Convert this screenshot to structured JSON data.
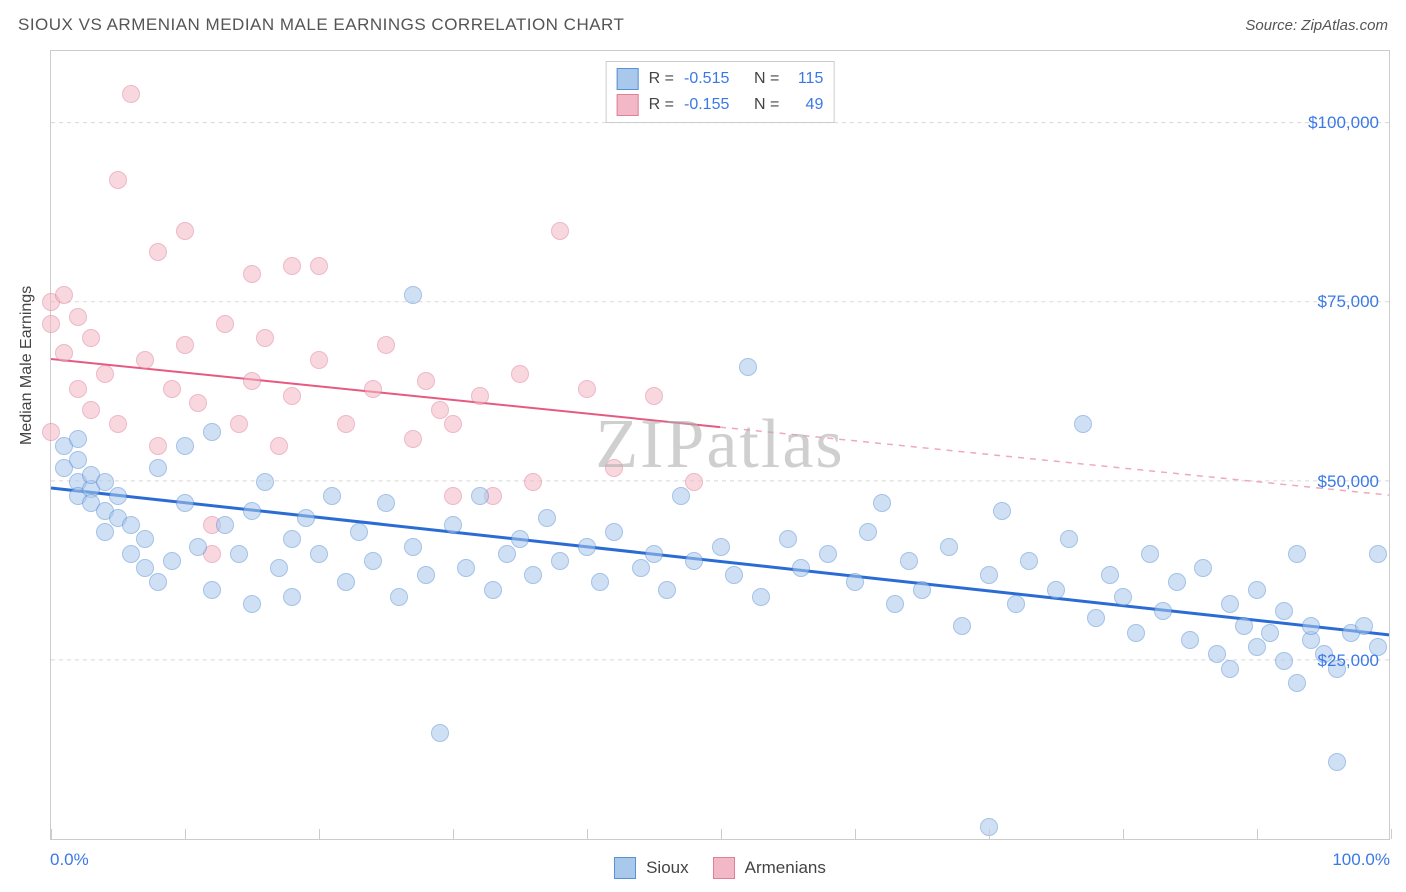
{
  "header": {
    "title": "SIOUX VS ARMENIAN MEDIAN MALE EARNINGS CORRELATION CHART",
    "source_prefix": "Source: ",
    "source": "ZipAtlas.com"
  },
  "chart": {
    "type": "scatter",
    "ylabel": "Median Male Earnings",
    "xlim": [
      0,
      100
    ],
    "ylim": [
      0,
      110000
    ],
    "y_gridlines": [
      25000,
      50000,
      75000,
      100000
    ],
    "y_tick_labels": [
      "$25,000",
      "$50,000",
      "$75,000",
      "$100,000"
    ],
    "x_ticks": [
      0,
      10,
      20,
      30,
      40,
      50,
      60,
      70,
      80,
      90,
      100
    ],
    "x_axis_left_label": "0.0%",
    "x_axis_right_label": "100.0%",
    "grid_color": "#d8d8d8",
    "border_color": "#cccccc",
    "tick_label_color": "#3b78e7",
    "background_color": "#ffffff",
    "point_radius": 9,
    "point_opacity": 0.55,
    "watermark": "ZIPatlas",
    "series": {
      "sioux": {
        "label": "Sioux",
        "fill": "#a8c8ec",
        "stroke": "#5b8fd6",
        "trend": {
          "x1": 0,
          "y1": 49000,
          "x2": 100,
          "y2": 28500,
          "width": 3,
          "color": "#2b6cd4",
          "dash": "none"
        },
        "points": [
          [
            1,
            55000
          ],
          [
            1,
            52000
          ],
          [
            2,
            50000
          ],
          [
            2,
            48000
          ],
          [
            2,
            53000
          ],
          [
            2,
            56000
          ],
          [
            3,
            49000
          ],
          [
            3,
            47000
          ],
          [
            3,
            51000
          ],
          [
            4,
            46000
          ],
          [
            4,
            50000
          ],
          [
            4,
            43000
          ],
          [
            5,
            48000
          ],
          [
            5,
            45000
          ],
          [
            6,
            44000
          ],
          [
            6,
            40000
          ],
          [
            7,
            42000
          ],
          [
            7,
            38000
          ],
          [
            8,
            52000
          ],
          [
            8,
            36000
          ],
          [
            9,
            39000
          ],
          [
            10,
            55000
          ],
          [
            10,
            47000
          ],
          [
            11,
            41000
          ],
          [
            12,
            57000
          ],
          [
            12,
            35000
          ],
          [
            13,
            44000
          ],
          [
            14,
            40000
          ],
          [
            15,
            46000
          ],
          [
            15,
            33000
          ],
          [
            16,
            50000
          ],
          [
            17,
            38000
          ],
          [
            18,
            42000
          ],
          [
            18,
            34000
          ],
          [
            19,
            45000
          ],
          [
            20,
            40000
          ],
          [
            21,
            48000
          ],
          [
            22,
            36000
          ],
          [
            23,
            43000
          ],
          [
            24,
            39000
          ],
          [
            25,
            47000
          ],
          [
            26,
            34000
          ],
          [
            27,
            76000
          ],
          [
            27,
            41000
          ],
          [
            28,
            37000
          ],
          [
            29,
            15000
          ],
          [
            30,
            44000
          ],
          [
            31,
            38000
          ],
          [
            32,
            48000
          ],
          [
            33,
            35000
          ],
          [
            34,
            40000
          ],
          [
            35,
            42000
          ],
          [
            36,
            37000
          ],
          [
            37,
            45000
          ],
          [
            38,
            39000
          ],
          [
            40,
            41000
          ],
          [
            41,
            36000
          ],
          [
            42,
            43000
          ],
          [
            44,
            38000
          ],
          [
            45,
            40000
          ],
          [
            46,
            35000
          ],
          [
            47,
            48000
          ],
          [
            48,
            39000
          ],
          [
            50,
            41000
          ],
          [
            51,
            37000
          ],
          [
            52,
            66000
          ],
          [
            53,
            34000
          ],
          [
            55,
            42000
          ],
          [
            56,
            38000
          ],
          [
            58,
            40000
          ],
          [
            60,
            36000
          ],
          [
            61,
            43000
          ],
          [
            62,
            47000
          ],
          [
            63,
            33000
          ],
          [
            64,
            39000
          ],
          [
            65,
            35000
          ],
          [
            67,
            41000
          ],
          [
            68,
            30000
          ],
          [
            70,
            37000
          ],
          [
            70,
            2000
          ],
          [
            71,
            46000
          ],
          [
            72,
            33000
          ],
          [
            73,
            39000
          ],
          [
            75,
            35000
          ],
          [
            76,
            42000
          ],
          [
            77,
            58000
          ],
          [
            78,
            31000
          ],
          [
            79,
            37000
          ],
          [
            80,
            34000
          ],
          [
            81,
            29000
          ],
          [
            82,
            40000
          ],
          [
            83,
            32000
          ],
          [
            84,
            36000
          ],
          [
            85,
            28000
          ],
          [
            86,
            38000
          ],
          [
            87,
            26000
          ],
          [
            88,
            33000
          ],
          [
            88,
            24000
          ],
          [
            89,
            30000
          ],
          [
            90,
            27000
          ],
          [
            90,
            35000
          ],
          [
            91,
            29000
          ],
          [
            92,
            25000
          ],
          [
            92,
            32000
          ],
          [
            93,
            40000
          ],
          [
            93,
            22000
          ],
          [
            94,
            28000
          ],
          [
            94,
            30000
          ],
          [
            95,
            26000
          ],
          [
            96,
            24000
          ],
          [
            96,
            11000
          ],
          [
            97,
            29000
          ],
          [
            98,
            30000
          ],
          [
            99,
            40000
          ],
          [
            99,
            27000
          ]
        ]
      },
      "armenians": {
        "label": "Armenians",
        "fill": "#f3b8c5",
        "stroke": "#e07f9a",
        "trend_solid": {
          "x1": 0,
          "y1": 67000,
          "x2": 50,
          "y2": 57500,
          "width": 2,
          "color": "#e65a82"
        },
        "trend_dashed": {
          "x1": 50,
          "y1": 57500,
          "x2": 100,
          "y2": 48000,
          "width": 1.5,
          "color": "#f0a8bb"
        },
        "points": [
          [
            0,
            75000
          ],
          [
            0,
            57000
          ],
          [
            0,
            72000
          ],
          [
            1,
            76000
          ],
          [
            1,
            68000
          ],
          [
            2,
            73000
          ],
          [
            2,
            63000
          ],
          [
            3,
            70000
          ],
          [
            3,
            60000
          ],
          [
            4,
            65000
          ],
          [
            5,
            92000
          ],
          [
            5,
            58000
          ],
          [
            6,
            104000
          ],
          [
            7,
            67000
          ],
          [
            8,
            82000
          ],
          [
            8,
            55000
          ],
          [
            9,
            63000
          ],
          [
            10,
            69000
          ],
          [
            10,
            85000
          ],
          [
            11,
            61000
          ],
          [
            12,
            44000
          ],
          [
            12,
            40000
          ],
          [
            13,
            72000
          ],
          [
            14,
            58000
          ],
          [
            15,
            64000
          ],
          [
            15,
            79000
          ],
          [
            16,
            70000
          ],
          [
            17,
            55000
          ],
          [
            18,
            80000
          ],
          [
            18,
            62000
          ],
          [
            20,
            67000
          ],
          [
            20,
            80000
          ],
          [
            22,
            58000
          ],
          [
            24,
            63000
          ],
          [
            25,
            69000
          ],
          [
            27,
            56000
          ],
          [
            28,
            64000
          ],
          [
            29,
            60000
          ],
          [
            30,
            48000
          ],
          [
            30,
            58000
          ],
          [
            32,
            62000
          ],
          [
            33,
            48000
          ],
          [
            35,
            65000
          ],
          [
            36,
            50000
          ],
          [
            38,
            85000
          ],
          [
            40,
            63000
          ],
          [
            42,
            52000
          ],
          [
            45,
            62000
          ],
          [
            48,
            50000
          ]
        ]
      }
    },
    "top_legend": [
      {
        "swatch_fill": "#a8c8ec",
        "swatch_stroke": "#5b8fd6",
        "r_label": "R =",
        "r_value": "-0.515",
        "n_label": "N =",
        "n_value": "115"
      },
      {
        "swatch_fill": "#f3b8c5",
        "swatch_stroke": "#e07f9a",
        "r_label": "R =",
        "r_value": "-0.155",
        "n_label": "N =",
        "n_value": "49"
      }
    ]
  }
}
